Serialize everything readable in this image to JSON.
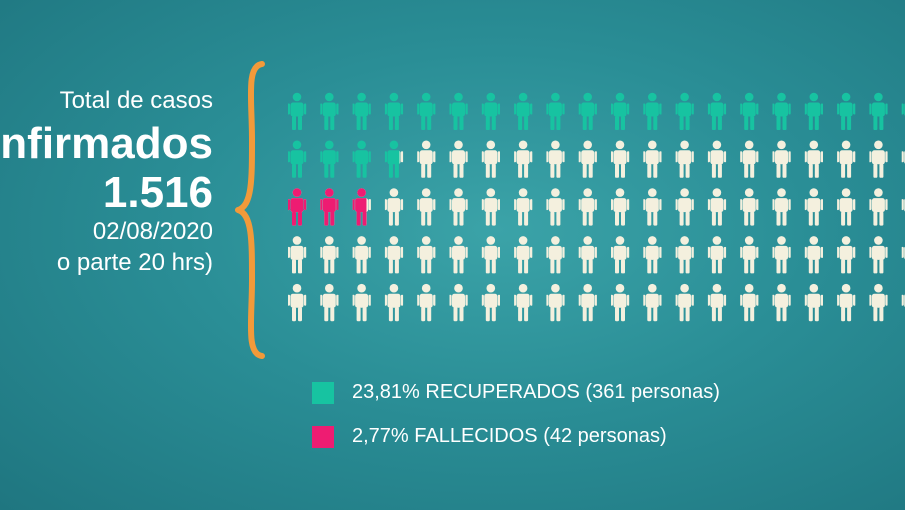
{
  "header": {
    "line1": "Total de casos",
    "line2": "nfirmados",
    "total": "1.516",
    "date": "02/08/2020",
    "note": "o parte 20 hrs)"
  },
  "legend": {
    "recovered": "23,81% RECUPERADOS (361 personas)",
    "deceased": "2,77% FALLECIDOS (42 personas)"
  },
  "colors": {
    "recovered": "#17c3a1",
    "deceased": "#ee1c72",
    "remaining": "#f4f0de",
    "brace": "#f29a3a"
  },
  "chart_data": {
    "type": "pictogram",
    "total": 1516,
    "categories": [
      "RECUPERADOS",
      "FALLECIDOS"
    ],
    "values": [
      361,
      42
    ],
    "percent": [
      23.81,
      2.77
    ],
    "date": "02/08/2020"
  }
}
